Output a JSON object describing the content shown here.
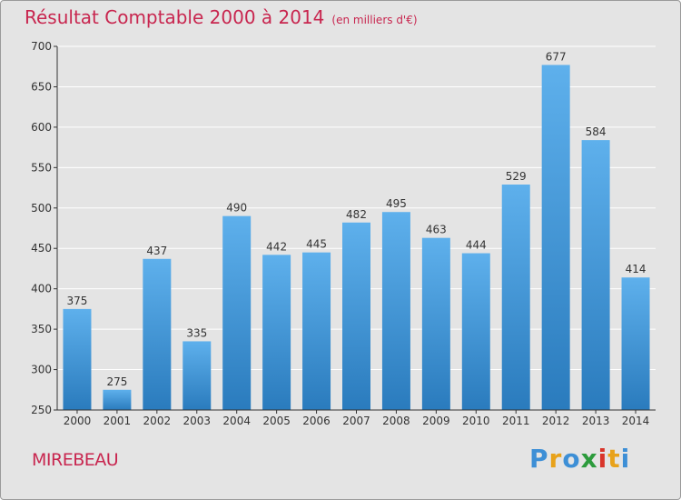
{
  "header": {
    "title": "Résultat Comptable 2000 à 2014",
    "subtitle": "(en milliers d'€)"
  },
  "commune": "MIREBEAU",
  "logo": {
    "text": "Proxiti",
    "letters": [
      "P",
      "r",
      "o",
      "x",
      "i",
      "t",
      "i"
    ],
    "colors": [
      "#3d8fd6",
      "#e8a21a",
      "#3d8fd6",
      "#2c9b3c",
      "#d9352a",
      "#e8a21a",
      "#3d8fd6"
    ]
  },
  "colors": {
    "bar_top": "#5eb0ec",
    "bar_bottom": "#2a7bbd",
    "grid": "#ffffff",
    "axis": "#333333",
    "text": "#333333"
  },
  "chart_data": {
    "type": "bar",
    "title": "Résultat Comptable 2000 à 2014",
    "subtitle": "(en milliers d'€)",
    "xlabel": "",
    "ylabel": "",
    "categories": [
      "2000",
      "2001",
      "2002",
      "2003",
      "2004",
      "2005",
      "2006",
      "2007",
      "2008",
      "2009",
      "2010",
      "2011",
      "2012",
      "2013",
      "2014"
    ],
    "values": [
      375,
      275,
      437,
      335,
      490,
      442,
      445,
      482,
      495,
      463,
      444,
      529,
      677,
      584,
      414
    ],
    "ylim": [
      250,
      700
    ],
    "yticks": [
      250,
      300,
      350,
      400,
      450,
      500,
      550,
      600,
      650,
      700
    ],
    "grid": true,
    "data_labels": true
  }
}
